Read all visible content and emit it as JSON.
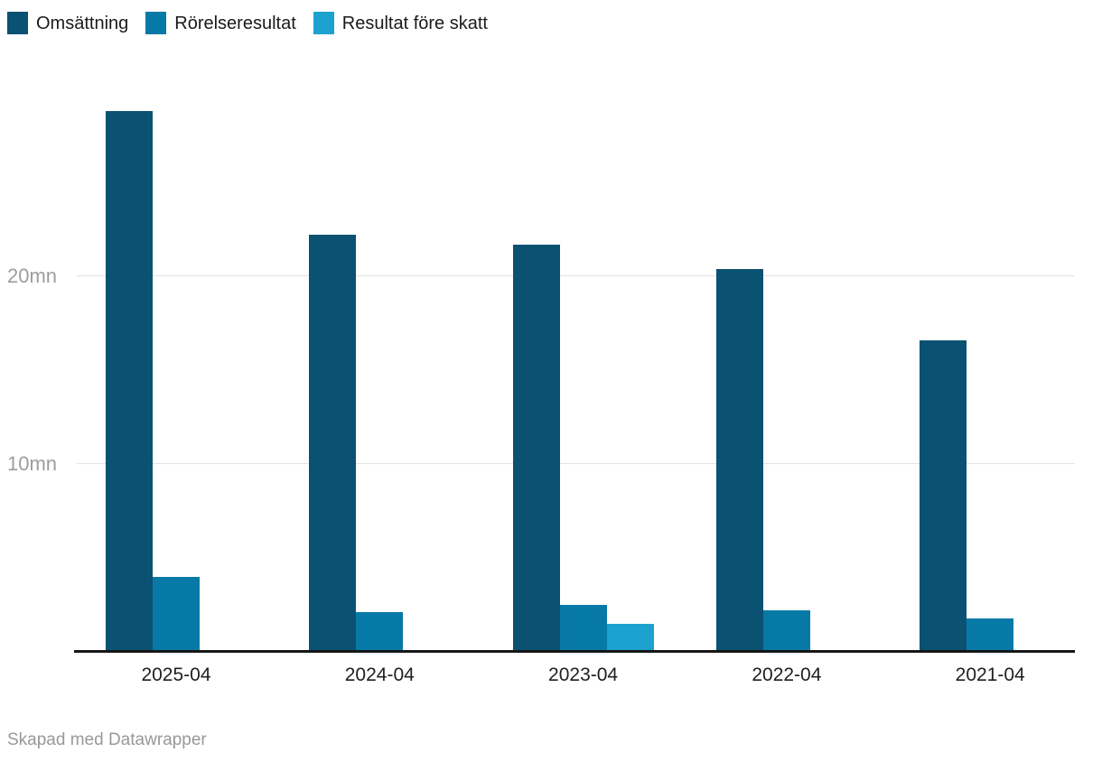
{
  "chart_data": {
    "type": "bar",
    "title": "",
    "categories": [
      "2025-04",
      "2024-04",
      "2023-04",
      "2022-04",
      "2021-04"
    ],
    "series": [
      {
        "name": "Omsättning",
        "color": "#0b5172",
        "values": [
          28.8,
          22.2,
          21.7,
          20.4,
          16.6
        ]
      },
      {
        "name": "Rörelseresultat",
        "color": "#0779a6",
        "values": [
          4.0,
          2.1,
          2.5,
          2.2,
          1.8
        ]
      },
      {
        "name": "Resultat före skatt",
        "color": "#1ca2ce",
        "values": [
          null,
          null,
          1.5,
          null,
          null
        ]
      }
    ],
    "yticks": [
      {
        "value": 10,
        "label": "10mn"
      },
      {
        "value": 20,
        "label": "20mn"
      }
    ],
    "ylim": [
      0,
      31.25
    ],
    "unit": "mn",
    "grid": true,
    "legend_position": "top-left",
    "xlabel": "",
    "ylabel": ""
  },
  "colors": {
    "grid": "#e2e2e2",
    "axis_line": "#161616",
    "ytick_text": "#9d9d9d",
    "xtick_text": "#202020",
    "footer_text": "#989898"
  },
  "footer": {
    "attribution": "Skapad med Datawrapper"
  }
}
